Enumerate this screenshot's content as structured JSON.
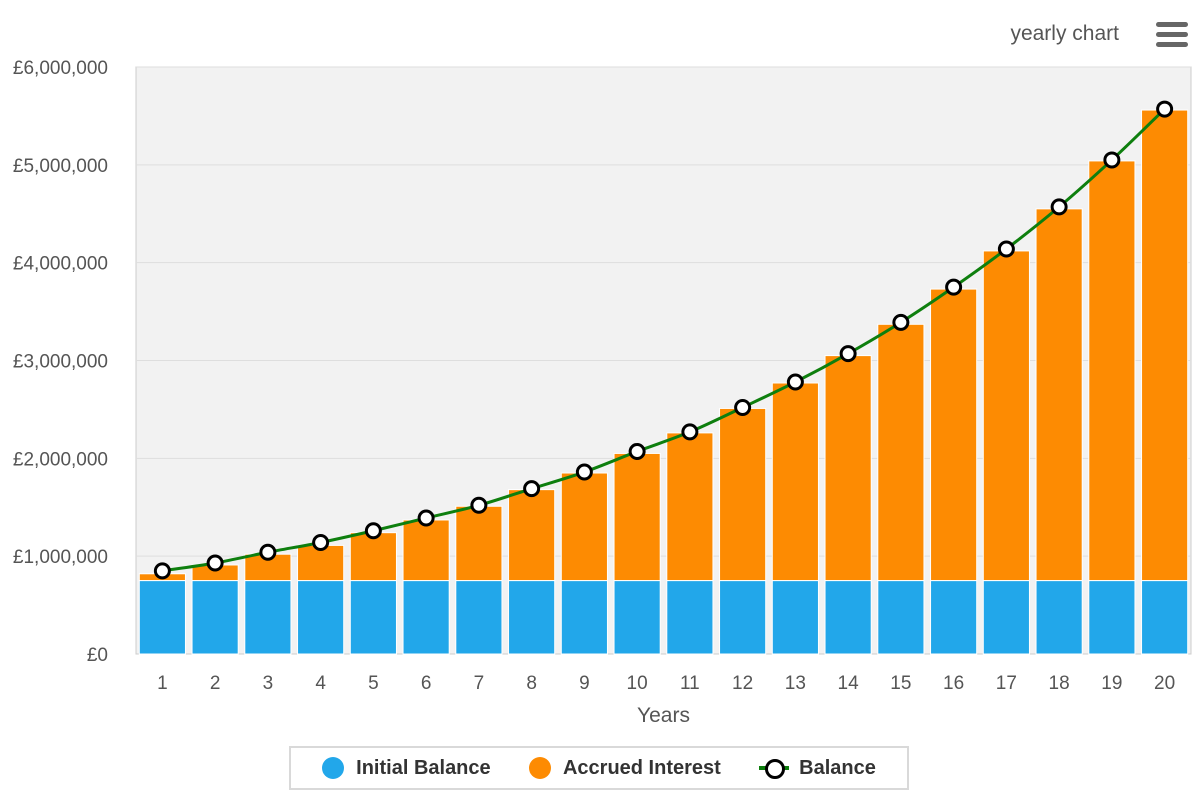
{
  "header": {
    "title": "yearly chart"
  },
  "icons": {
    "menu": "hamburger-menu-icon"
  },
  "colors": {
    "initial": "#22a7ea",
    "interest": "#fd8b02",
    "balance_line": "#0e7f0e",
    "plot_bg": "#f2f2f2",
    "grid": "#dedede"
  },
  "chart_data": {
    "type": "bar",
    "stacked": true,
    "title": "yearly chart",
    "xlabel": "Years",
    "ylabel": "",
    "ylim": [
      0,
      6000000
    ],
    "yticks": [
      0,
      1000000,
      2000000,
      3000000,
      4000000,
      5000000,
      6000000
    ],
    "ytick_labels": [
      "£0",
      "£1,000,000",
      "£2,000,000",
      "£3,000,000",
      "£4,000,000",
      "£5,000,000",
      "£6,000,000"
    ],
    "categories": [
      "1",
      "2",
      "3",
      "4",
      "5",
      "6",
      "7",
      "8",
      "9",
      "10",
      "11",
      "12",
      "13",
      "14",
      "15",
      "16",
      "17",
      "18",
      "19",
      "20"
    ],
    "series": [
      {
        "name": "Initial Balance",
        "kind": "bar",
        "values": [
          750000,
          750000,
          750000,
          750000,
          750000,
          750000,
          750000,
          750000,
          750000,
          750000,
          750000,
          750000,
          750000,
          750000,
          750000,
          750000,
          750000,
          750000,
          750000,
          750000
        ]
      },
      {
        "name": "Accrued Interest",
        "kind": "bar",
        "values": [
          70000,
          160000,
          270000,
          360000,
          490000,
          620000,
          760000,
          930000,
          1100000,
          1300000,
          1510000,
          1760000,
          2020000,
          2300000,
          2620000,
          2980000,
          3370000,
          3800000,
          4290000,
          4810000
        ]
      },
      {
        "name": "Balance",
        "kind": "line",
        "values": [
          850000,
          930000,
          1040000,
          1140000,
          1260000,
          1390000,
          1520000,
          1690000,
          1860000,
          2070000,
          2270000,
          2520000,
          2780000,
          3070000,
          3390000,
          3750000,
          4140000,
          4570000,
          5050000,
          5570000
        ]
      }
    ],
    "grid": true,
    "legend_position": "bottom"
  }
}
